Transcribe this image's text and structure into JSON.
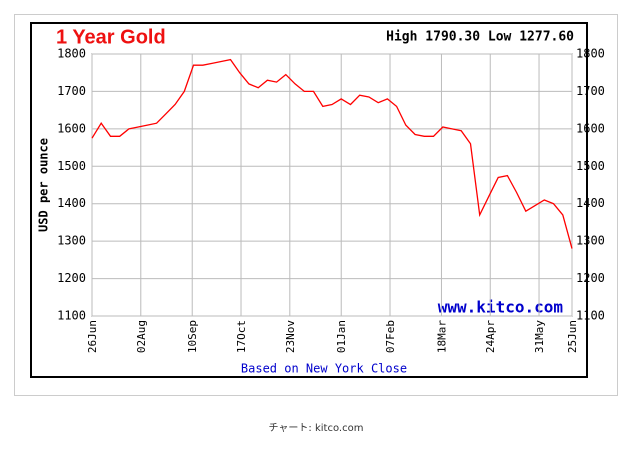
{
  "chart_data": {
    "type": "line",
    "title": "1 Year Gold",
    "subtitle": "High 1790.30 Low 1277.60",
    "y_label": "USD per ounce",
    "watermark": "www.kitco.com",
    "x_label": "Based on New York Close",
    "x": [
      0,
      7,
      14,
      21,
      28,
      35,
      42,
      49,
      56,
      63,
      70,
      77,
      84,
      91,
      98,
      105,
      112,
      119,
      126,
      133,
      140,
      147,
      154,
      161,
      168,
      175,
      182,
      189,
      196,
      203,
      210,
      217,
      224,
      231,
      238,
      245,
      252,
      259,
      266,
      273,
      280,
      287,
      294,
      301,
      308,
      315,
      322,
      329,
      336,
      343,
      350,
      357,
      364
    ],
    "series": [
      {
        "color": "#ff0000",
        "values": [
          1575,
          1615,
          1580,
          1580,
          1600,
          1605,
          1610,
          1615,
          1640,
          1665,
          1700,
          1770,
          1770,
          1775,
          1780,
          1785,
          1750,
          1720,
          1710,
          1730,
          1725,
          1745,
          1720,
          1700,
          1700,
          1660,
          1665,
          1680,
          1665,
          1690,
          1685,
          1670,
          1680,
          1660,
          1610,
          1585,
          1580,
          1580,
          1605,
          1600,
          1595,
          1560,
          1370,
          1420,
          1470,
          1475,
          1430,
          1380,
          1395,
          1410,
          1400,
          1370,
          1280
        ]
      }
    ],
    "xlim": [
      0,
      364
    ],
    "xticks": [
      {
        "value": 0,
        "label": "26Jun"
      },
      {
        "value": 37,
        "label": "02Aug"
      },
      {
        "value": 76,
        "label": "10Sep"
      },
      {
        "value": 113,
        "label": "17Oct"
      },
      {
        "value": 150,
        "label": "23Nov"
      },
      {
        "value": 189,
        "label": "01Jan"
      },
      {
        "value": 226,
        "label": "07Feb"
      },
      {
        "value": 265,
        "label": "18Mar"
      },
      {
        "value": 302,
        "label": "24Apr"
      },
      {
        "value": 339,
        "label": "31May"
      },
      {
        "value": 364,
        "label": "25Jun"
      }
    ],
    "ylim": [
      1100,
      1800
    ],
    "yticks": [
      1100,
      1200,
      1300,
      1400,
      1500,
      1600,
      1700,
      1800
    ],
    "grid": true
  },
  "caption": "チャート: kitco.com"
}
